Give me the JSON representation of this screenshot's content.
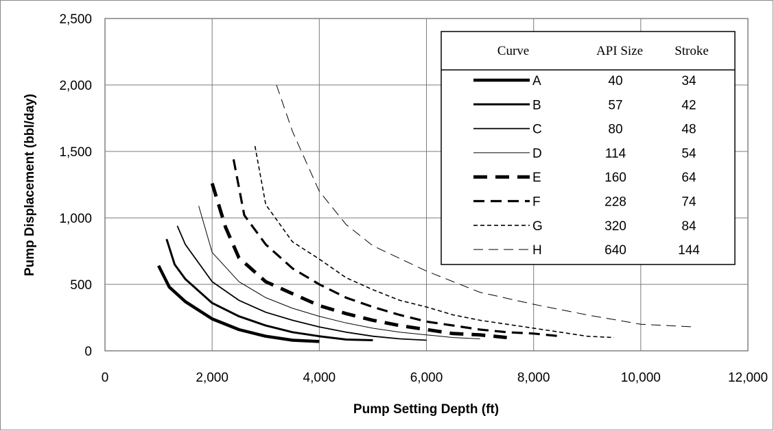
{
  "chart_data": {
    "type": "line",
    "xlabel": "Pump Setting Depth (ft)",
    "ylabel": "Pump Displacement (bbl/day)",
    "xlim": [
      0,
      12000
    ],
    "ylim": [
      0,
      2500
    ],
    "x_ticks": [
      0,
      2000,
      4000,
      6000,
      8000,
      10000,
      12000
    ],
    "x_tick_labels": [
      "0",
      "2,000",
      "4,000",
      "6,000",
      "8,000",
      "10,000",
      "12,000"
    ],
    "y_ticks": [
      0,
      500,
      1000,
      1500,
      2000,
      2500
    ],
    "y_tick_labels": [
      "0",
      "500",
      "1,000",
      "1,500",
      "2,000",
      "2,500"
    ],
    "grid": true,
    "legend_position": "top-right",
    "legend_headers": [
      "Curve",
      "API Size",
      "Stroke"
    ],
    "series": [
      {
        "name": "A",
        "api_size": "40",
        "stroke": "34",
        "x": [
          1000,
          1200,
          1500,
          2000,
          2500,
          3000,
          3500,
          4000
        ],
        "y": [
          640,
          480,
          370,
          240,
          160,
          110,
          80,
          70
        ]
      },
      {
        "name": "B",
        "api_size": "57",
        "stroke": "42",
        "x": [
          1150,
          1300,
          1500,
          2000,
          2500,
          3000,
          3500,
          4000,
          4500,
          5000
        ],
        "y": [
          840,
          650,
          540,
          360,
          260,
          190,
          140,
          110,
          85,
          80
        ]
      },
      {
        "name": "C",
        "api_size": "80",
        "stroke": "48",
        "x": [
          1350,
          1500,
          2000,
          2500,
          3000,
          3500,
          4000,
          4500,
          5000,
          5500,
          6000
        ],
        "y": [
          940,
          800,
          520,
          380,
          290,
          230,
          180,
          140,
          110,
          90,
          80
        ]
      },
      {
        "name": "D",
        "api_size": "114",
        "stroke": "54",
        "x": [
          1750,
          2000,
          2500,
          3000,
          3500,
          4000,
          4500,
          5000,
          5500,
          6000,
          6500,
          7000
        ],
        "y": [
          1090,
          740,
          520,
          400,
          320,
          260,
          210,
          170,
          140,
          120,
          100,
          90
        ]
      },
      {
        "name": "E",
        "api_size": "160",
        "stroke": "64",
        "x": [
          2000,
          2250,
          2500,
          3000,
          3500,
          4000,
          4500,
          5000,
          5500,
          6000,
          6500,
          7000,
          7500
        ],
        "y": [
          1260,
          930,
          700,
          520,
          430,
          340,
          280,
          230,
          190,
          160,
          130,
          120,
          100
        ]
      },
      {
        "name": "F",
        "api_size": "228",
        "stroke": "74",
        "x": [
          2400,
          2600,
          3000,
          3500,
          4000,
          4500,
          5000,
          5500,
          6000,
          6500,
          7000,
          7500,
          8000,
          8500
        ],
        "y": [
          1440,
          1020,
          800,
          620,
          500,
          400,
          330,
          270,
          220,
          190,
          160,
          140,
          130,
          110
        ]
      },
      {
        "name": "G",
        "api_size": "320",
        "stroke": "84",
        "x": [
          2800,
          3000,
          3500,
          4000,
          4500,
          5000,
          5500,
          6000,
          6500,
          7000,
          7500,
          8000,
          8500,
          9000,
          9500
        ],
        "y": [
          1540,
          1100,
          820,
          690,
          550,
          460,
          380,
          330,
          270,
          230,
          200,
          170,
          140,
          110,
          100
        ]
      },
      {
        "name": "H",
        "api_size": "640",
        "stroke": "144",
        "x": [
          3200,
          3500,
          4000,
          4500,
          5000,
          6000,
          7000,
          8000,
          9000,
          10000,
          11000
        ],
        "y": [
          2000,
          1650,
          1200,
          950,
          790,
          600,
          440,
          350,
          270,
          200,
          180
        ]
      }
    ]
  }
}
